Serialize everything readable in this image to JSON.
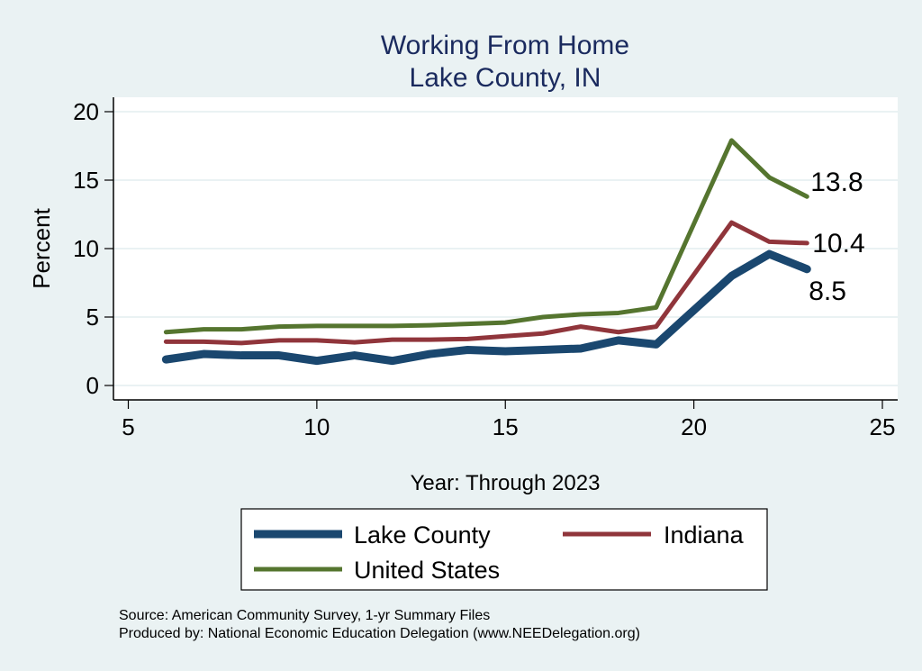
{
  "chart_data": {
    "type": "line",
    "title": "Working From Home",
    "subtitle": "Lake County, IN",
    "xlabel": "Year: Through 2023",
    "ylabel": "Percent",
    "xlim": [
      5,
      25
    ],
    "ylim": [
      0,
      20
    ],
    "xticks": [
      5,
      10,
      15,
      20,
      25
    ],
    "yticks": [
      0,
      5,
      10,
      15,
      20
    ],
    "grid": true,
    "legend_position": "bottom",
    "x": [
      6,
      7,
      8,
      9,
      10,
      11,
      12,
      13,
      14,
      15,
      16,
      17,
      18,
      19,
      20,
      21,
      22,
      23
    ],
    "series": [
      {
        "name": "Lake County",
        "color": "#1a476f",
        "values": [
          1.9,
          2.3,
          2.2,
          2.2,
          1.8,
          2.2,
          1.8,
          2.3,
          2.6,
          2.5,
          2.6,
          2.7,
          3.3,
          3.0,
          5.5,
          8.0,
          9.6,
          8.5
        ],
        "end_label": "8.5"
      },
      {
        "name": "Indiana",
        "color": "#90353b",
        "values": [
          3.2,
          3.2,
          3.1,
          3.3,
          3.3,
          3.15,
          3.35,
          3.35,
          3.4,
          3.6,
          3.8,
          4.3,
          3.9,
          4.3,
          8.1,
          11.9,
          10.5,
          10.4
        ],
        "end_label": "10.4"
      },
      {
        "name": "United States",
        "color": "#55752f",
        "values": [
          3.9,
          4.1,
          4.1,
          4.3,
          4.35,
          4.35,
          4.35,
          4.4,
          4.5,
          4.6,
          5.0,
          5.2,
          5.3,
          5.7,
          11.8,
          17.9,
          15.2,
          13.8
        ],
        "end_label": "13.8"
      }
    ]
  },
  "notes": {
    "source": "Source: American Community Survey, 1-yr Summary Files",
    "produced": "Produced by: National Economic Education Delegation (www.NEEDelegation.org)"
  }
}
